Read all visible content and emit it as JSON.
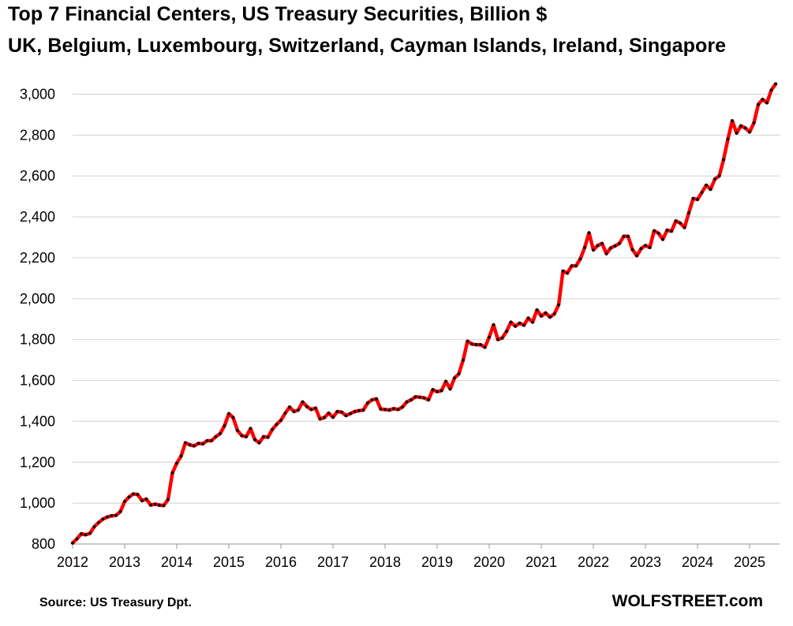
{
  "chart_data": {
    "type": "line",
    "title": "Top 7 Financial Centers, US Treasury Securities, Billion $",
    "subtitle": "UK, Belgium, Luxembourg, Switzerland, Cayman Islands, Ireland, Singapore",
    "source": "Source: US Treasury  Dpt.",
    "brand": "WOLFSTREET.com",
    "xlabel": "",
    "ylabel": "",
    "ylim": [
      800,
      3050
    ],
    "xlim": [
      2012,
      2025.6
    ],
    "y_ticks": [
      800,
      1000,
      1200,
      1400,
      1600,
      1800,
      2000,
      2200,
      2400,
      2600,
      2800,
      3000
    ],
    "y_tick_labels": [
      "800",
      "1,000",
      "1,200",
      "1,400",
      "1,600",
      "1,800",
      "2,000",
      "2,200",
      "2,400",
      "2,600",
      "2,800",
      "3,000"
    ],
    "x_ticks": [
      2012,
      2013,
      2014,
      2015,
      2016,
      2017,
      2018,
      2019,
      2020,
      2021,
      2022,
      2023,
      2024,
      2025
    ],
    "x_tick_labels": [
      "2012",
      "2013",
      "2014",
      "2015",
      "2016",
      "2017",
      "2018",
      "2019",
      "2020",
      "2021",
      "2022",
      "2023",
      "2024",
      "2025"
    ],
    "grid": "horizontal",
    "legend": "none",
    "line_color": "#ff0000",
    "marker_color": "#000000",
    "series": [
      {
        "values": [
          805,
          825,
          850,
          845,
          852,
          885,
          905,
          922,
          932,
          938,
          940,
          958,
          1008,
          1030,
          1045,
          1042,
          1012,
          1020,
          990,
          995,
          990,
          988,
          1018,
          1148,
          1195,
          1230,
          1295,
          1285,
          1280,
          1292,
          1290,
          1305,
          1305,
          1325,
          1340,
          1378,
          1438,
          1418,
          1355,
          1330,
          1325,
          1365,
          1310,
          1295,
          1325,
          1322,
          1360,
          1385,
          1405,
          1440,
          1470,
          1448,
          1455,
          1495,
          1472,
          1458,
          1465,
          1412,
          1418,
          1440,
          1420,
          1448,
          1445,
          1428,
          1438,
          1448,
          1452,
          1455,
          1490,
          1505,
          1510,
          1460,
          1458,
          1455,
          1462,
          1458,
          1470,
          1495,
          1505,
          1520,
          1518,
          1515,
          1505,
          1555,
          1545,
          1550,
          1595,
          1558,
          1612,
          1632,
          1700,
          1792,
          1778,
          1775,
          1775,
          1762,
          1812,
          1872,
          1800,
          1808,
          1840,
          1885,
          1865,
          1880,
          1870,
          1905,
          1885,
          1945,
          1915,
          1930,
          1910,
          1925,
          1970,
          2135,
          2125,
          2160,
          2160,
          2195,
          2250,
          2322,
          2238,
          2260,
          2270,
          2220,
          2248,
          2258,
          2270,
          2305,
          2305,
          2240,
          2210,
          2245,
          2260,
          2250,
          2332,
          2320,
          2290,
          2335,
          2330,
          2380,
          2370,
          2348,
          2420,
          2490,
          2485,
          2520,
          2555,
          2535,
          2585,
          2600,
          2680,
          2780,
          2870,
          2810,
          2845,
          2835,
          2815,
          2860,
          2950,
          2975,
          2958,
          3020,
          3050
        ]
      }
    ]
  }
}
